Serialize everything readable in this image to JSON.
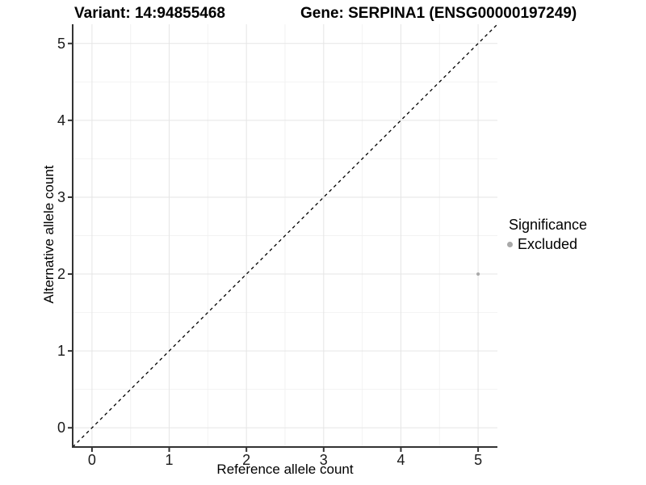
{
  "title_bar": {
    "variant": "Variant: 14:94855468",
    "gene": "Gene: SERPINA1 (ENSG00000197249)"
  },
  "legend": {
    "title": "Significance",
    "items": [
      {
        "label": "Excluded",
        "color": "#a9a9a9",
        "icon": "dot-icon"
      }
    ]
  },
  "chart_data": {
    "type": "scatter",
    "title": "Variant: 14:94855468    Gene: SERPINA1 (ENSG00000197249)",
    "xlabel": "Reference allele count",
    "ylabel": "Alternative allele count",
    "xlim": [
      -0.25,
      5.25
    ],
    "ylim": [
      -0.25,
      5.25
    ],
    "x_ticks": [
      0,
      1,
      2,
      3,
      4,
      5
    ],
    "y_ticks": [
      0,
      1,
      2,
      3,
      4,
      5
    ],
    "x_minor_ticks": [
      0.5,
      1.5,
      2.5,
      3.5,
      4.5
    ],
    "y_minor_ticks": [
      0.5,
      1.5,
      2.5,
      3.5,
      4.5
    ],
    "grid": "on",
    "legend_position": "right",
    "series": [
      {
        "name": "Excluded",
        "color": "#a9a9a9",
        "marker": "circle",
        "points": [
          {
            "x": 5,
            "y": 2
          }
        ]
      }
    ],
    "reference_line": {
      "kind": "identity",
      "style": "dashed",
      "color": "#000000",
      "from": [
        -0.25,
        -0.25
      ],
      "to": [
        5.25,
        5.25
      ]
    }
  },
  "colors": {
    "background": "#ffffff",
    "axis_line": "#333333",
    "major_grid": "#e5e5e5",
    "minor_grid": "#f2f2f2",
    "tick_mark": "#333333",
    "tick_label": "#1a1a1a",
    "point": "#a9a9a9",
    "dashed_line": "#000000"
  }
}
